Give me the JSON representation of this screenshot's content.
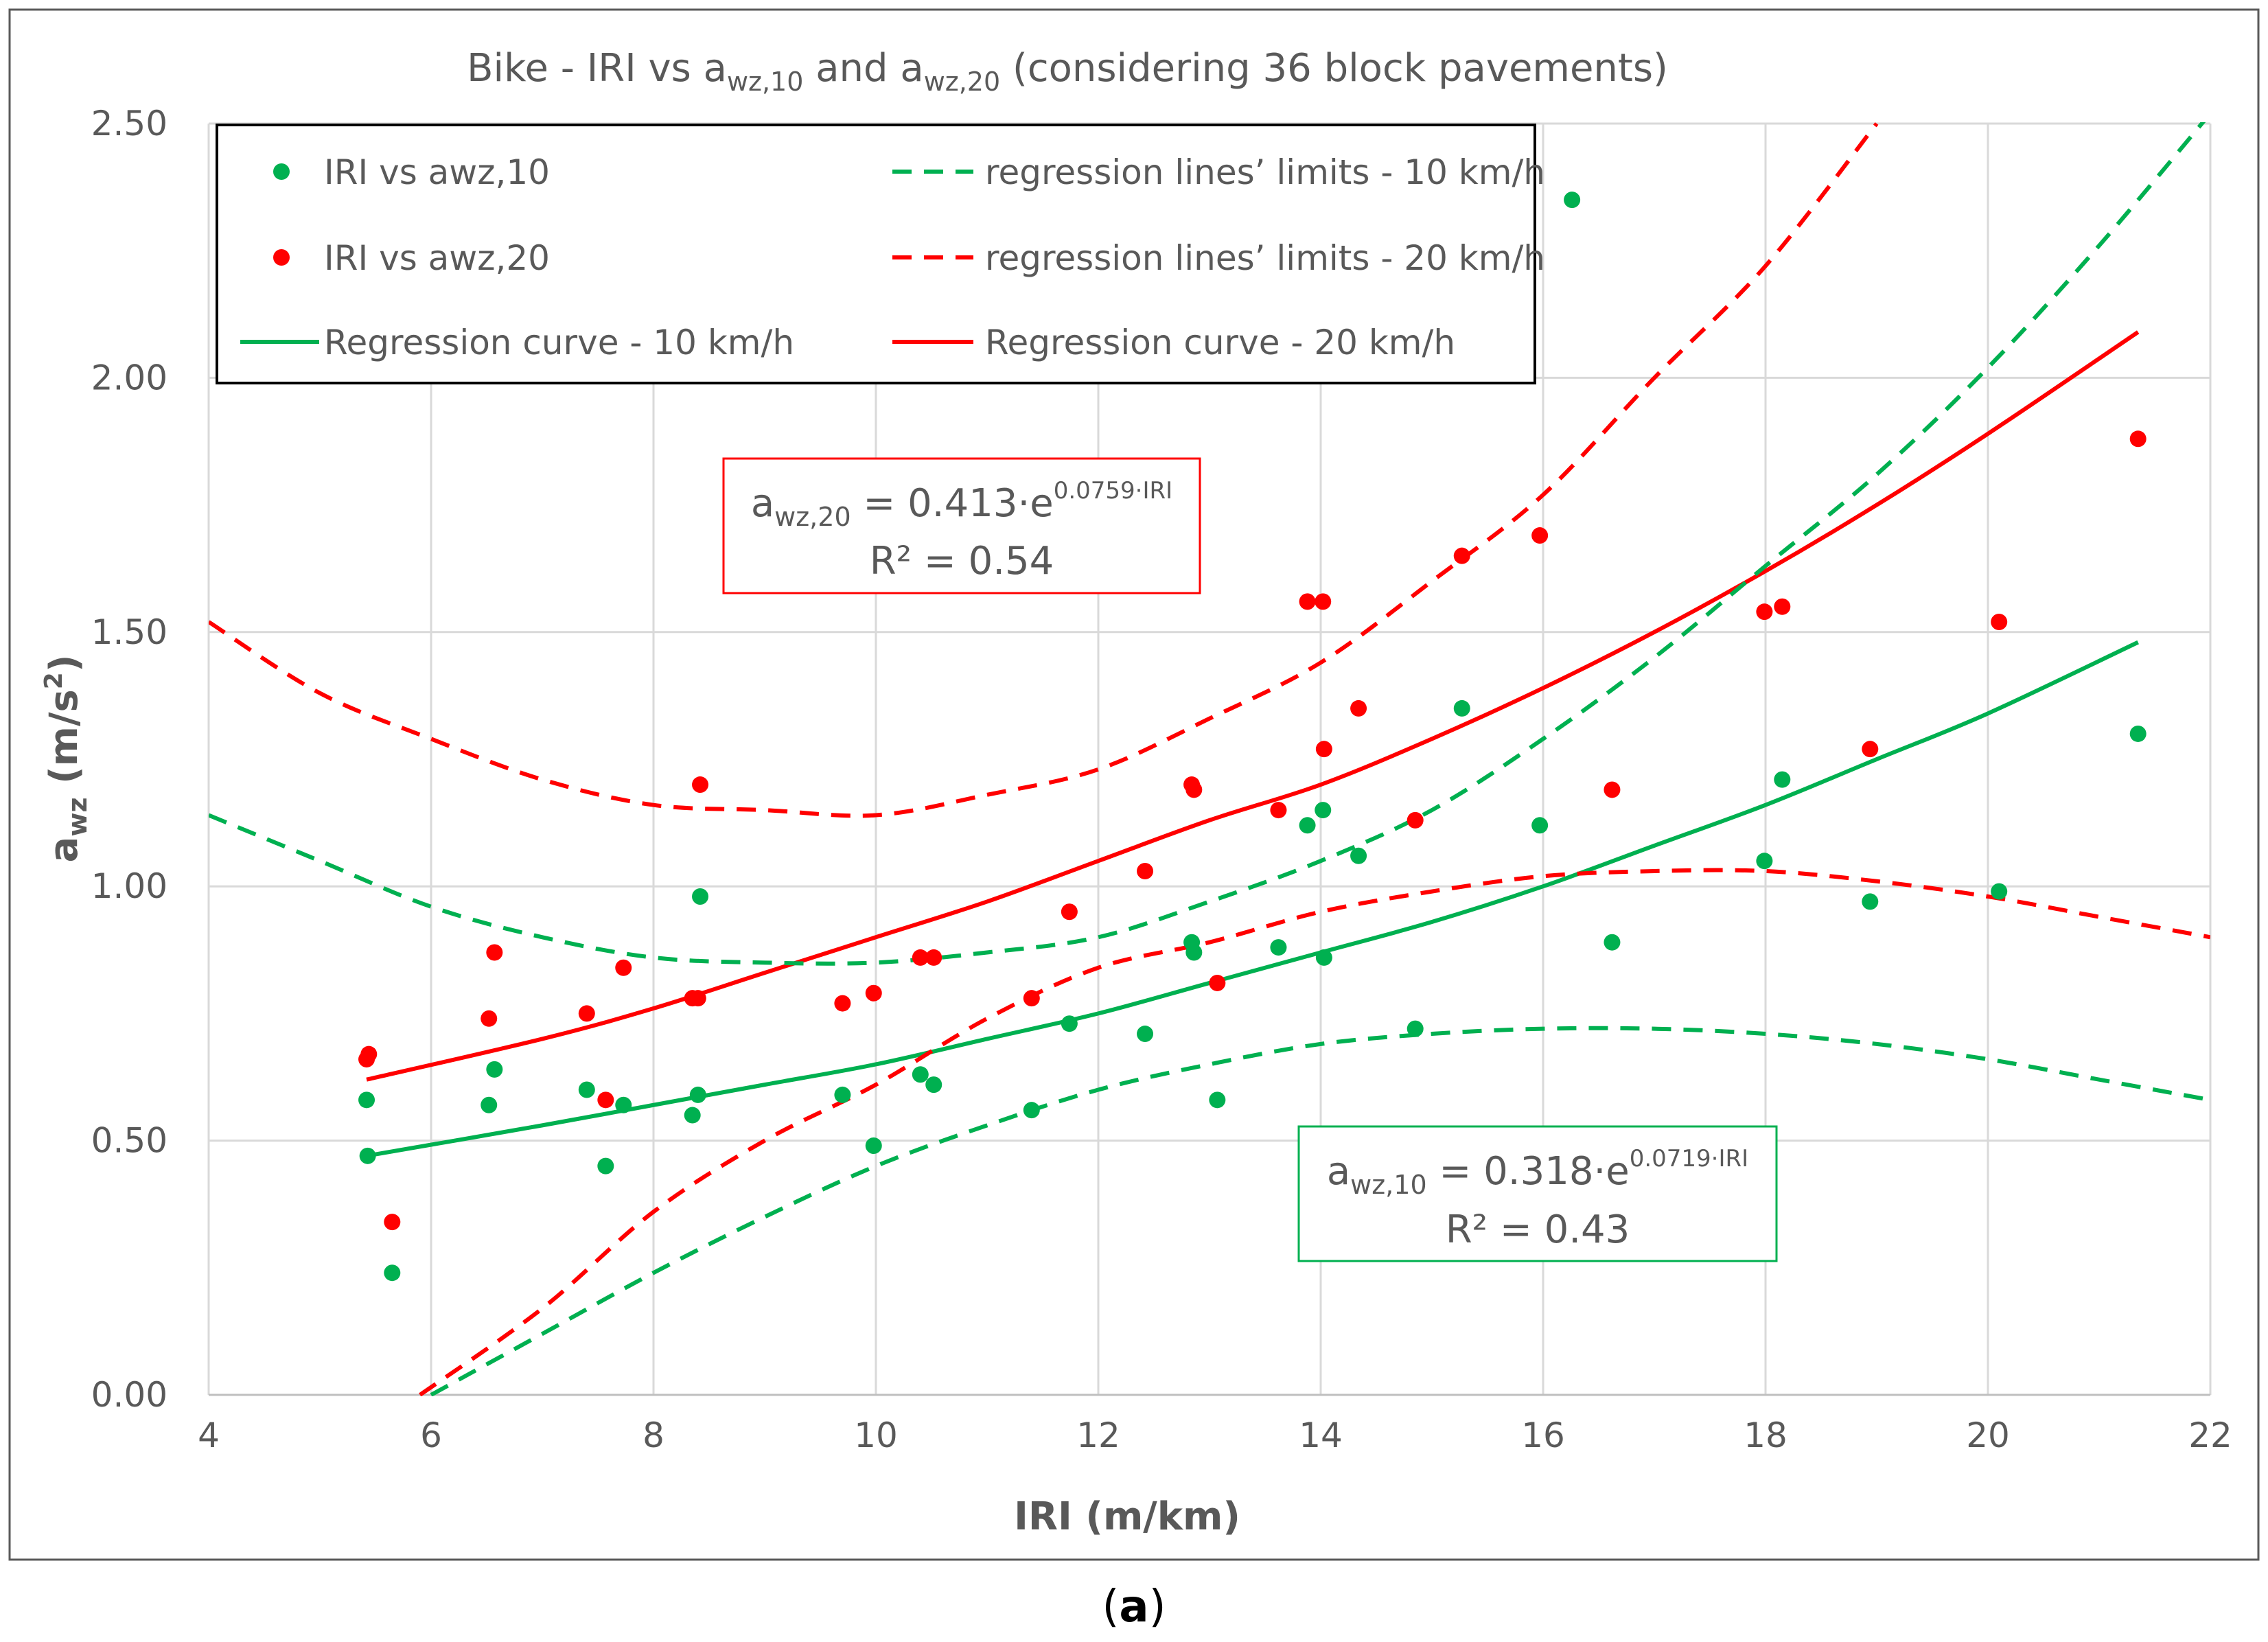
{
  "chart_data": {
    "type": "scatter",
    "title": "Bike - IRI vs awz,10 and awz,20 (considering 36 block pavements)",
    "title_parts": {
      "pre": "Bike - IRI vs a",
      "sub1": "wz,10",
      "mid": " and a",
      "sub2": "wz,20",
      "post": " (considering 36 block pavements)"
    },
    "xlabel": "IRI (m/km)",
    "ylabel_parts": {
      "base": "a",
      "sub": "wz",
      "units": " (m/s",
      "sup": "2",
      "close": ")"
    },
    "xlim": [
      4,
      22
    ],
    "ylim": [
      0,
      2.5
    ],
    "x_ticks": [
      "4",
      "6",
      "8",
      "10",
      "12",
      "14",
      "16",
      "18",
      "20",
      "22"
    ],
    "y_ticks": [
      "0.00",
      "0.50",
      "1.00",
      "1.50",
      "2.00",
      "2.50"
    ],
    "grid": true,
    "legend_position": "top-left",
    "legend": [
      {
        "label": "IRI vs awz,10",
        "kind": "marker",
        "color": "#00b050"
      },
      {
        "label": "regression lines’ limits - 10 km/h",
        "kind": "dashed",
        "color": "#00b050"
      },
      {
        "label": "IRI vs awz,20",
        "kind": "marker",
        "color": "#ff0000"
      },
      {
        "label": "regression lines’ limits - 20 km/h",
        "kind": "dashed",
        "color": "#ff0000"
      },
      {
        "label": "Regression curve - 10 km/h",
        "kind": "solid",
        "color": "#00b050"
      },
      {
        "label": "Regression curve - 20 km/h",
        "kind": "solid",
        "color": "#ff0000"
      }
    ],
    "annotations": {
      "eq20": {
        "lhs": "a",
        "sub": "wz,20",
        "rhs": " = 0.413·e",
        "sup": "0.0759·IRI",
        "r2": "R² = 0.54",
        "color": "#ff0000"
      },
      "eq10": {
        "lhs": "a",
        "sub": "wz,10",
        "rhs": " = 0.318·e",
        "sup": "0.0719·IRI",
        "r2": "R² = 0.43",
        "color": "#00b050"
      }
    },
    "colors": {
      "green": "#00b050",
      "red": "#ff0000",
      "grid": "#d9d9d9",
      "text": "#595959"
    },
    "series": [
      {
        "name": "IRI vs awz,10",
        "kind": "scatter",
        "color": "#00b050",
        "points": [
          [
            5.42,
            0.58
          ],
          [
            5.43,
            0.47
          ],
          [
            5.65,
            0.24
          ],
          [
            6.52,
            0.57
          ],
          [
            6.57,
            0.64
          ],
          [
            7.4,
            0.6
          ],
          [
            7.57,
            0.45
          ],
          [
            7.73,
            0.57
          ],
          [
            8.35,
            0.55
          ],
          [
            8.4,
            0.59
          ],
          [
            8.42,
            0.98
          ],
          [
            9.7,
            0.59
          ],
          [
            9.98,
            0.49
          ],
          [
            10.4,
            0.63
          ],
          [
            10.52,
            0.61
          ],
          [
            11.4,
            0.56
          ],
          [
            11.74,
            0.73
          ],
          [
            12.42,
            0.71
          ],
          [
            12.84,
            0.89
          ],
          [
            12.86,
            0.87
          ],
          [
            13.07,
            0.58
          ],
          [
            13.62,
            0.88
          ],
          [
            13.88,
            1.12
          ],
          [
            14.02,
            1.15
          ],
          [
            14.03,
            0.86
          ],
          [
            14.34,
            1.06
          ],
          [
            14.85,
            0.72
          ],
          [
            15.27,
            1.35
          ],
          [
            15.97,
            1.12
          ],
          [
            16.26,
            2.35
          ],
          [
            16.62,
            0.89
          ],
          [
            17.99,
            1.05
          ],
          [
            18.15,
            1.21
          ],
          [
            18.94,
            0.97
          ],
          [
            20.1,
            0.99
          ],
          [
            21.35,
            1.3
          ]
        ]
      },
      {
        "name": "IRI vs awz,20",
        "kind": "scatter",
        "color": "#ff0000",
        "points": [
          [
            5.42,
            0.66
          ],
          [
            5.44,
            0.67
          ],
          [
            5.65,
            0.34
          ],
          [
            6.52,
            0.74
          ],
          [
            6.57,
            0.87
          ],
          [
            7.4,
            0.75
          ],
          [
            7.57,
            0.58
          ],
          [
            7.73,
            0.84
          ],
          [
            8.35,
            0.78
          ],
          [
            8.4,
            0.78
          ],
          [
            8.42,
            1.2
          ],
          [
            9.7,
            0.77
          ],
          [
            9.98,
            0.79
          ],
          [
            10.4,
            0.86
          ],
          [
            10.52,
            0.86
          ],
          [
            11.4,
            0.78
          ],
          [
            11.74,
            0.95
          ],
          [
            12.42,
            1.03
          ],
          [
            12.84,
            1.2
          ],
          [
            12.86,
            1.19
          ],
          [
            13.07,
            0.81
          ],
          [
            13.62,
            1.15
          ],
          [
            13.88,
            1.56
          ],
          [
            14.02,
            1.56
          ],
          [
            14.03,
            1.27
          ],
          [
            14.34,
            1.35
          ],
          [
            14.85,
            1.13
          ],
          [
            15.27,
            1.65
          ],
          [
            15.97,
            1.69
          ],
          [
            16.62,
            1.19
          ],
          [
            17.99,
            1.54
          ],
          [
            18.15,
            1.55
          ],
          [
            18.94,
            1.27
          ],
          [
            20.1,
            1.52
          ],
          [
            21.35,
            1.88
          ]
        ]
      },
      {
        "name": "Regression curve - 10 km/h",
        "kind": "solid",
        "color": "#00b050",
        "points": [
          [
            5.42,
            0.47
          ],
          [
            7,
            0.53
          ],
          [
            8,
            0.57
          ],
          [
            9,
            0.61
          ],
          [
            10,
            0.65
          ],
          [
            11,
            0.7
          ],
          [
            12,
            0.75
          ],
          [
            13,
            0.81
          ],
          [
            14,
            0.87
          ],
          [
            15,
            0.93
          ],
          [
            16,
            1.0
          ],
          [
            17,
            1.08
          ],
          [
            18,
            1.16
          ],
          [
            19,
            1.25
          ],
          [
            20,
            1.34
          ],
          [
            21.35,
            1.48
          ]
        ]
      },
      {
        "name": "Regression curve - 20 km/h",
        "kind": "solid",
        "color": "#ff0000",
        "points": [
          [
            5.42,
            0.62
          ],
          [
            7,
            0.7
          ],
          [
            8,
            0.76
          ],
          [
            9,
            0.83
          ],
          [
            10,
            0.9
          ],
          [
            11,
            0.97
          ],
          [
            12,
            1.05
          ],
          [
            13,
            1.13
          ],
          [
            14,
            1.2
          ],
          [
            15,
            1.29
          ],
          [
            16,
            1.39
          ],
          [
            17,
            1.5
          ],
          [
            18,
            1.62
          ],
          [
            19,
            1.75
          ],
          [
            20,
            1.89
          ],
          [
            21.35,
            2.09
          ]
        ]
      },
      {
        "name": "regression lines’ limits - 10 km/h (upper)",
        "kind": "dashed",
        "color": "#00b050",
        "points": [
          [
            4,
            1.14
          ],
          [
            5,
            1.05
          ],
          [
            6,
            0.96
          ],
          [
            7,
            0.9
          ],
          [
            8,
            0.86
          ],
          [
            9,
            0.85
          ],
          [
            10,
            0.85
          ],
          [
            11,
            0.87
          ],
          [
            12,
            0.9
          ],
          [
            13,
            0.97
          ],
          [
            14,
            1.05
          ],
          [
            15,
            1.15
          ],
          [
            16,
            1.29
          ],
          [
            17,
            1.45
          ],
          [
            18,
            1.63
          ],
          [
            19,
            1.81
          ],
          [
            20,
            2.02
          ],
          [
            21,
            2.26
          ],
          [
            22,
            2.52
          ]
        ]
      },
      {
        "name": "regression lines’ limits - 10 km/h (lower)",
        "kind": "dashed",
        "color": "#00b050",
        "points": [
          [
            6,
            0.0
          ],
          [
            7,
            0.12
          ],
          [
            8,
            0.24
          ],
          [
            9,
            0.35
          ],
          [
            10,
            0.45
          ],
          [
            11,
            0.53
          ],
          [
            12,
            0.6
          ],
          [
            13,
            0.65
          ],
          [
            14,
            0.69
          ],
          [
            15,
            0.71
          ],
          [
            16,
            0.72
          ],
          [
            17,
            0.72
          ],
          [
            18,
            0.71
          ],
          [
            19,
            0.69
          ],
          [
            20,
            0.66
          ],
          [
            21,
            0.62
          ],
          [
            22,
            0.58
          ]
        ]
      },
      {
        "name": "regression lines’ limits - 20 km/h (upper)",
        "kind": "dashed",
        "color": "#ff0000",
        "points": [
          [
            4,
            1.52
          ],
          [
            5,
            1.38
          ],
          [
            6,
            1.29
          ],
          [
            7,
            1.21
          ],
          [
            8,
            1.16
          ],
          [
            9,
            1.15
          ],
          [
            10,
            1.14
          ],
          [
            11,
            1.18
          ],
          [
            12,
            1.23
          ],
          [
            13,
            1.33
          ],
          [
            14,
            1.44
          ],
          [
            15,
            1.6
          ],
          [
            16,
            1.77
          ],
          [
            17,
            2.0
          ],
          [
            18,
            2.22
          ],
          [
            19,
            2.5
          ]
        ]
      },
      {
        "name": "regression lines’ limits - 20 km/h (lower)",
        "kind": "dashed",
        "color": "#ff0000",
        "points": [
          [
            5.9,
            0.0
          ],
          [
            7,
            0.17
          ],
          [
            8,
            0.36
          ],
          [
            9,
            0.5
          ],
          [
            10,
            0.61
          ],
          [
            11,
            0.74
          ],
          [
            12,
            0.84
          ],
          [
            13,
            0.89
          ],
          [
            14,
            0.95
          ],
          [
            15,
            0.99
          ],
          [
            16,
            1.02
          ],
          [
            17,
            1.03
          ],
          [
            18,
            1.03
          ],
          [
            19,
            1.01
          ],
          [
            20,
            0.98
          ],
          [
            21,
            0.94
          ],
          [
            22,
            0.9
          ]
        ]
      }
    ]
  },
  "caption": {
    "open": "(",
    "letter": "a",
    "close": ")"
  }
}
